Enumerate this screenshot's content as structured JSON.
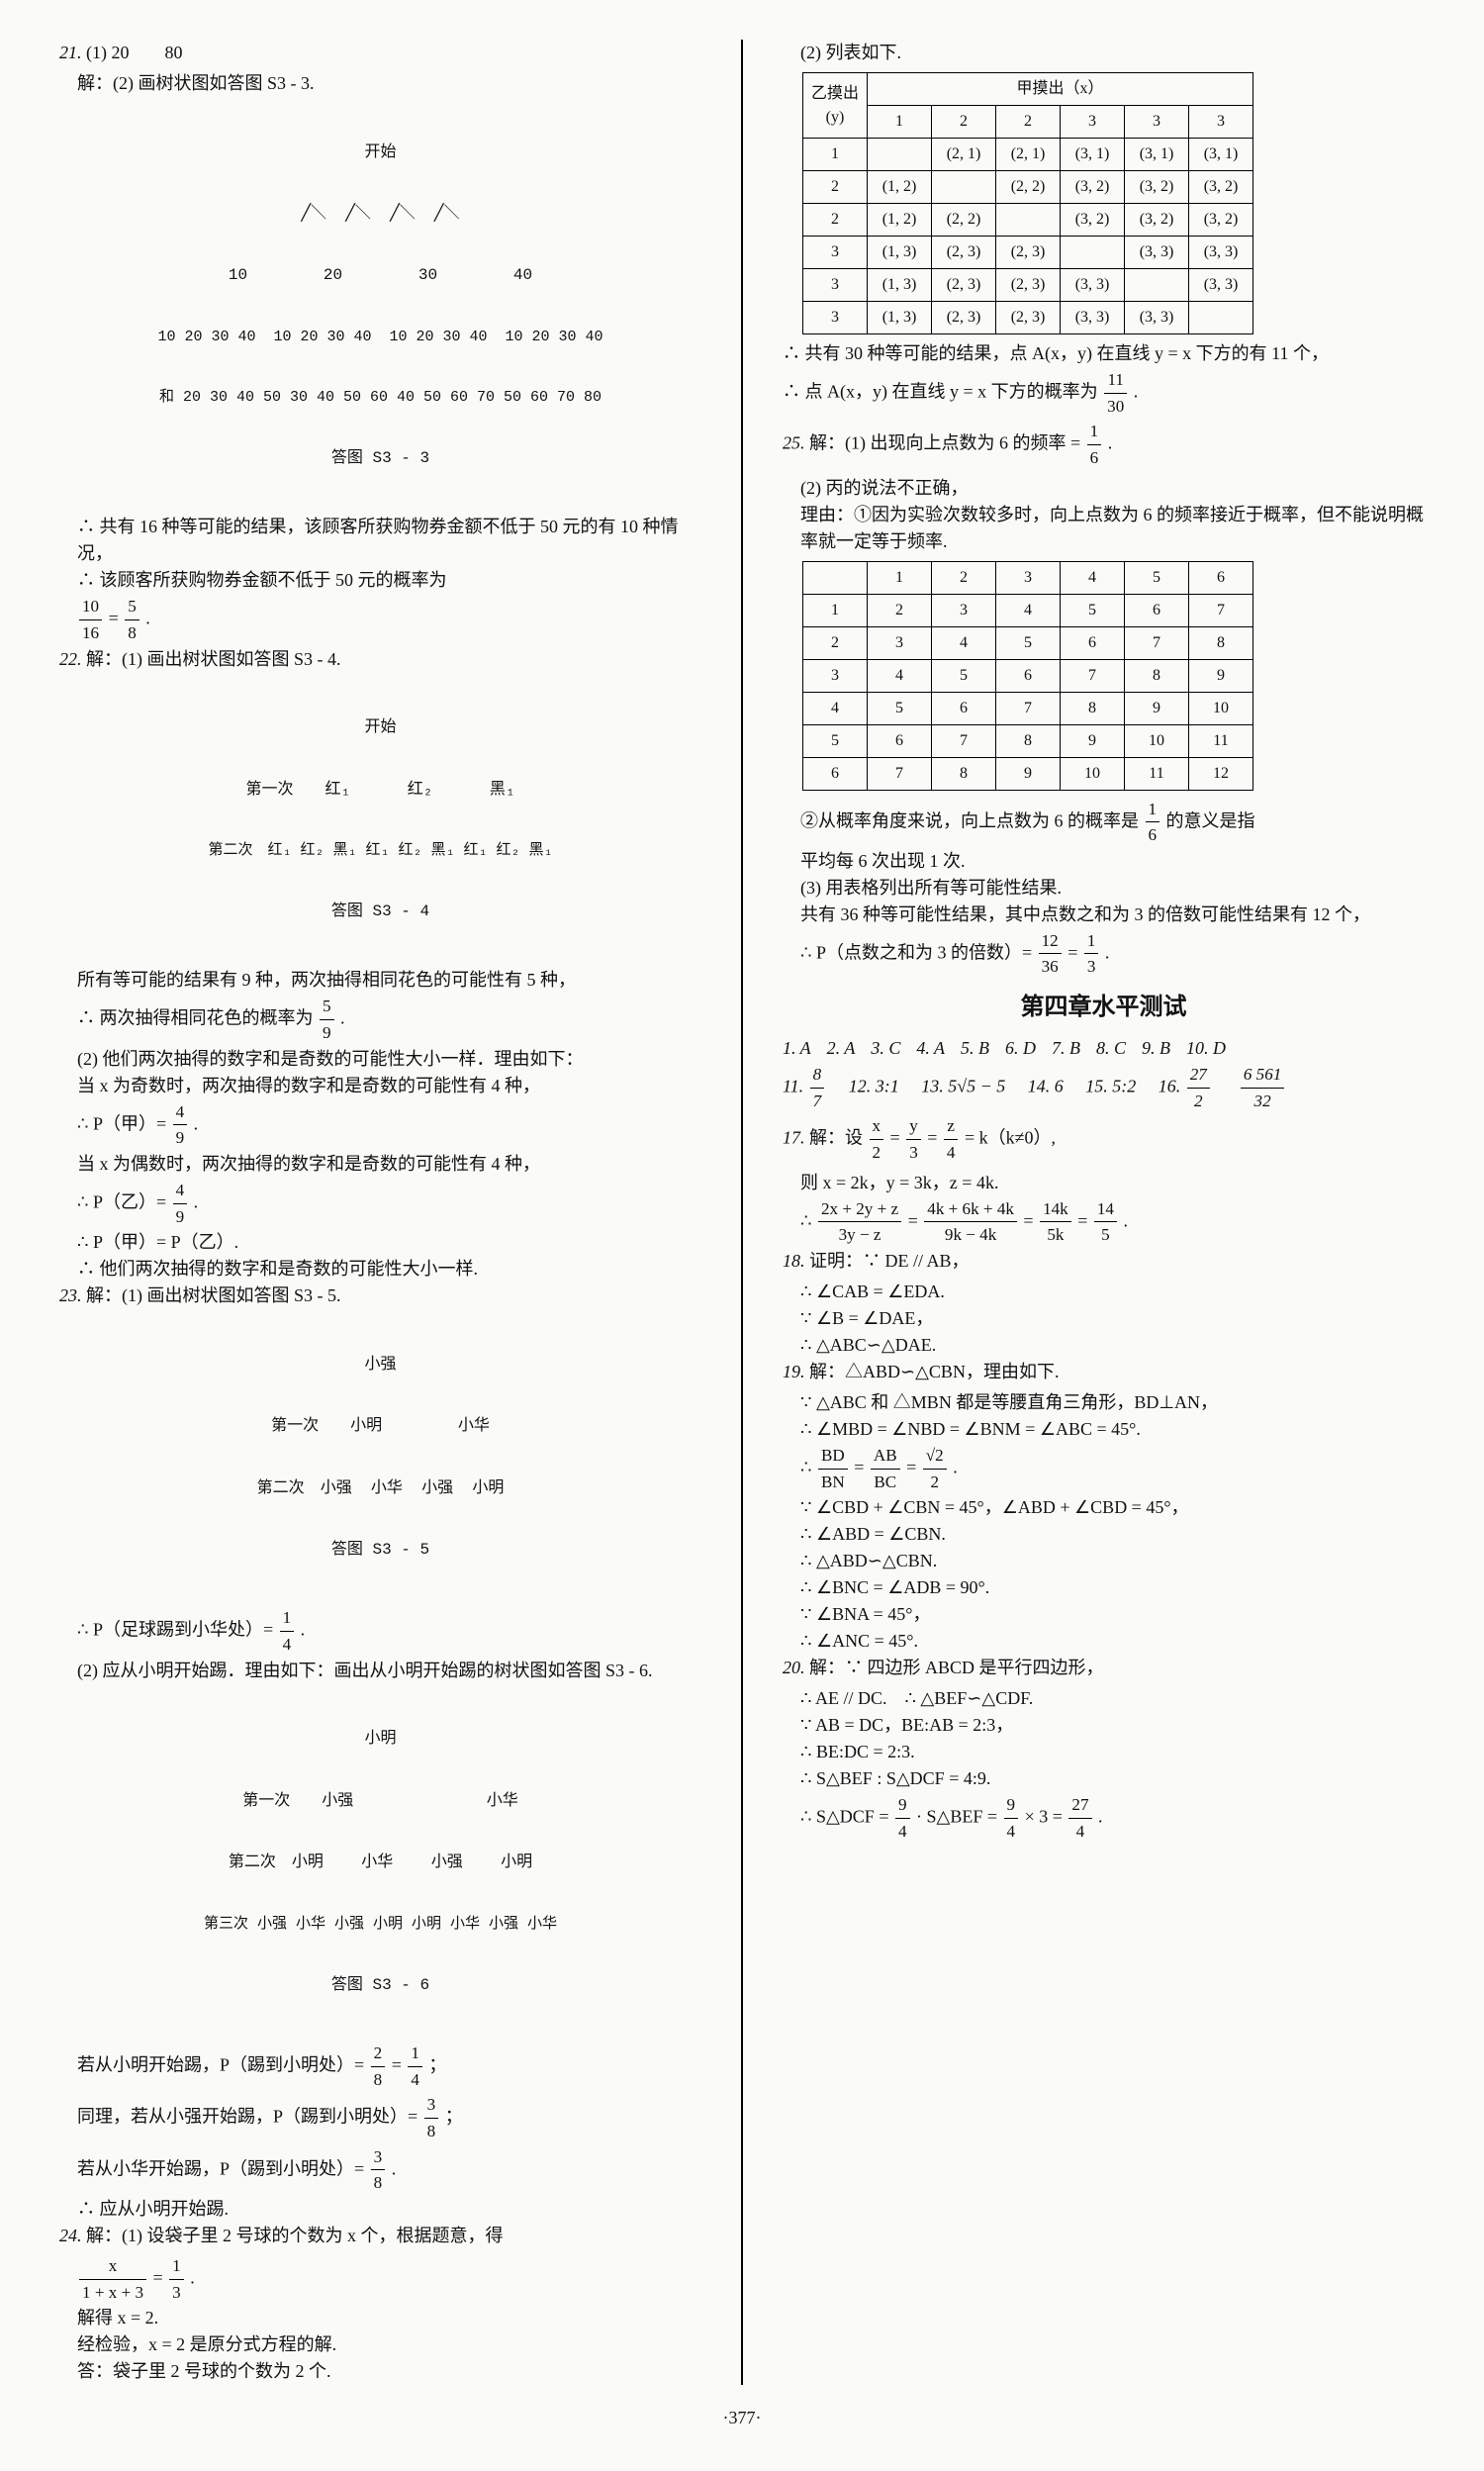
{
  "page_number": "·377·",
  "left": {
    "q21": {
      "num": "21.",
      "part1": "(1) 20　　80",
      "part2_label": "解：(2) 画树状图如答图 S3 - 3.",
      "tree_top": "开始",
      "tree_l1": "10        20        30        40",
      "tree_l2": "10 20 30 40  10 20 30 40  10 20 30 40  10 20 30 40",
      "tree_sum": "和 20 30 40 50 30 40 50 60 40 50 60 70 50 60 70 80",
      "tree_caption": "答图 S3 - 3",
      "concl1": "∴ 共有 16 种等可能的结果，该顾客所获购物券金额不低于 50 元的有 10 种情况，",
      "concl2_a": "∴ 该顾客所获购物券金额不低于 50 元的概率为",
      "frac1_n": "10",
      "frac1_d": "16",
      "eq": " = ",
      "frac2_n": "5",
      "frac2_d": "8",
      "period": "."
    },
    "q22": {
      "num": "22.",
      "label": "解：(1) 画出树状图如答图 S3 - 4.",
      "tree_top": "开始",
      "row1_label": "第一次",
      "row1": "红₁      红₂      黑₁",
      "row2_label": "第二次",
      "row2": "红₁ 红₂ 黑₁ 红₁ 红₂ 黑₁ 红₁ 红₂ 黑₁",
      "caption": "答图 S3 - 4",
      "s1": "所有等可能的结果有 9 种，两次抽得相同花色的可能性有 5 种，",
      "s2a": "∴ 两次抽得相同花色的概率为",
      "f1n": "5",
      "f1d": "9",
      "dot": ".",
      "s3": "(2) 他们两次抽得的数字和是奇数的可能性大小一样．理由如下：",
      "s4": "当 x 为奇数时，两次抽得的数字和是奇数的可能性有 4 种，",
      "s5a": "∴ P（甲）= ",
      "f2n": "4",
      "f2d": "9",
      "dot2": ".",
      "s6": "当 x 为偶数时，两次抽得的数字和是奇数的可能性有 4 种，",
      "s7a": "∴ P（乙）= ",
      "f3n": "4",
      "f3d": "9",
      "dot3": ".",
      "s8": "∴ P（甲）= P（乙）.",
      "s9": "∴ 他们两次抽得的数字和是奇数的可能性大小一样."
    },
    "q23": {
      "num": "23.",
      "label": "解：(1) 画出树状图如答图 S3 - 5.",
      "top": "小强",
      "r1l": "第一次",
      "r1": "小明        小华",
      "r2l": "第二次",
      "r2": "小强  小华  小强  小明",
      "cap": "答图 S3 - 5",
      "s1a": "∴ P（足球踢到小华处）= ",
      "f1n": "1",
      "f1d": "4",
      "dot": ".",
      "s2": "(2) 应从小明开始踢．理由如下：画出从小明开始踢的树状图如答图 S3 - 6.",
      "top2": "小明",
      "b1l": "第一次",
      "b1": "小强              小华",
      "b2l": "第二次",
      "b2": "小明    小华    小强    小明",
      "b3l": "第三次",
      "b3": "小强 小华 小强 小明 小明 小华 小强 小华",
      "cap2": "答图 S3 - 6",
      "s3a": "若从小明开始踢，P（踢到小明处）= ",
      "f2n": "2",
      "f2d": "8",
      "eq": " = ",
      "f3n": "1",
      "f3d": "4",
      "semi": "；",
      "s4a": "同理，若从小强开始踢，P（踢到小明处）= ",
      "f4n": "3",
      "f4d": "8",
      "semi2": "；",
      "s5a": "若从小华开始踢，P（踢到小明处）= ",
      "f5n": "3",
      "f5d": "8",
      "dot2": ".",
      "s6": "∴ 应从小明开始踢."
    },
    "q24": {
      "num": "24.",
      "label": "解：(1) 设袋子里 2 号球的个数为 x 个，根据题意，得",
      "eq_l": "x",
      "eq_ld": "1 + x + 3",
      "eq_mid": " = ",
      "eq_rn": "1",
      "eq_rd": "3",
      "dot": ".",
      "s2": "解得 x = 2.",
      "s3": "经检验，x = 2 是原分式方程的解.",
      "s4": "答：袋子里 2 号球的个数为 2 个."
    }
  },
  "right": {
    "q24b": {
      "label": "(2) 列表如下.",
      "hcorner_a": "乙摸出",
      "hcorner_b": "(y)",
      "hhead": "甲摸出（x）",
      "cols": [
        "1",
        "2",
        "2",
        "3",
        "3",
        "3"
      ],
      "rows": [
        {
          "h": "1",
          "c": [
            "",
            "(2, 1)",
            "(2, 1)",
            "(3, 1)",
            "(3, 1)",
            "(3, 1)"
          ]
        },
        {
          "h": "2",
          "c": [
            "(1, 2)",
            "",
            "(2, 2)",
            "(3, 2)",
            "(3, 2)",
            "(3, 2)"
          ]
        },
        {
          "h": "2",
          "c": [
            "(1, 2)",
            "(2, 2)",
            "",
            "(3, 2)",
            "(3, 2)",
            "(3, 2)"
          ]
        },
        {
          "h": "3",
          "c": [
            "(1, 3)",
            "(2, 3)",
            "(2, 3)",
            "",
            "(3, 3)",
            "(3, 3)"
          ]
        },
        {
          "h": "3",
          "c": [
            "(1, 3)",
            "(2, 3)",
            "(2, 3)",
            "(3, 3)",
            "",
            "(3, 3)"
          ]
        },
        {
          "h": "3",
          "c": [
            "(1, 3)",
            "(2, 3)",
            "(2, 3)",
            "(3, 3)",
            "(3, 3)",
            ""
          ]
        }
      ],
      "s1": "∴ 共有 30 种等可能的结果，点 A(x，y) 在直线 y = x 下方的有 11 个，",
      "s2a": "∴ 点 A(x，y) 在直线 y = x 下方的概率为",
      "fn": "11",
      "fd": "30",
      "dot": "."
    },
    "q25": {
      "num": "25.",
      "s1a": "解：(1) 出现向上点数为 6 的频率 = ",
      "fn": "1",
      "fd": "6",
      "dot": ".",
      "s2": "(2) 丙的说法不正确，",
      "s3": "理由：①因为实验次数较多时，向上点数为 6 的频率接近于概率，但不能说明概率就一定等于频率.",
      "thead": [
        "",
        "1",
        "2",
        "3",
        "4",
        "5",
        "6"
      ],
      "trows": [
        [
          "1",
          "2",
          "3",
          "4",
          "5",
          "6",
          "7"
        ],
        [
          "2",
          "3",
          "4",
          "5",
          "6",
          "7",
          "8"
        ],
        [
          "3",
          "4",
          "5",
          "6",
          "7",
          "8",
          "9"
        ],
        [
          "4",
          "5",
          "6",
          "7",
          "8",
          "9",
          "10"
        ],
        [
          "5",
          "6",
          "7",
          "8",
          "9",
          "10",
          "11"
        ],
        [
          "6",
          "7",
          "8",
          "9",
          "10",
          "11",
          "12"
        ]
      ],
      "s4a": "②从概率角度来说，向上点数为 6 的概率是",
      "f2n": "1",
      "f2d": "6",
      "s4b": "的意义是指",
      "s5": "平均每 6 次出现 1 次.",
      "s6": "(3) 用表格列出所有等可能性结果.",
      "s7": "共有 36 种等可能性结果，其中点数之和为 3 的倍数可能性结果有 12 个，",
      "s8a": "∴ P（点数之和为 3 的倍数）= ",
      "f3n": "12",
      "f3d": "36",
      "eq": " = ",
      "f4n": "1",
      "f4d": "3",
      "dot2": "."
    },
    "ch4": {
      "title": "第四章水平测试",
      "mc": [
        "1. A",
        "2. A",
        "3. C",
        "4. A",
        "5. B",
        "6. D",
        "7. B",
        "8. C",
        "9. B",
        "10. D"
      ],
      "fill_11a": "11. ",
      "f11n": "8",
      "f11d": "7",
      "fill_12": "12. 3:1",
      "fill_13": "13. 5√5 − 5",
      "fill_14": "14. 6",
      "fill_15": "15. 5:2",
      "fill_16a": "16. ",
      "f16an": "27",
      "f16ad": "2",
      "sep": "　",
      "f16bn": "6 561",
      "f16bd": "32",
      "q17": {
        "num": "17.",
        "label": "解：设",
        "eq1n": "x",
        "eq1d": "2",
        "m1": " = ",
        "eq2n": "y",
        "eq2d": "3",
        "m2": " = ",
        "eq3n": "z",
        "eq3d": "4",
        "tail": " = k（k≠0）,",
        "s2": "则 x = 2k，y = 3k，z = 4k.",
        "s3a": "∴ ",
        "fn1": "2x + 2y + z",
        "fd1": "3y − z",
        "m3": " = ",
        "fn2": "4k + 6k + 4k",
        "fd2": "9k − 4k",
        "m4": " = ",
        "fn3": "14k",
        "fd3": "5k",
        "m5": " = ",
        "fn4": "14",
        "fd4": "5",
        "dot": "."
      },
      "q18": {
        "num": "18.",
        "label": "证明：∵ DE // AB，",
        "s2": "∴ ∠CAB = ∠EDA.",
        "s3": "∵ ∠B = ∠DAE，",
        "s4": "∴ △ABC∽△DAE."
      },
      "q19": {
        "num": "19.",
        "label": "解：△ABD∽△CBN，理由如下.",
        "s2": "∵ △ABC 和 △MBN 都是等腰直角三角形，BD⊥AN，",
        "s3": "∴ ∠MBD = ∠NBD = ∠BNM = ∠ABC = 45°.",
        "s4a": "∴ ",
        "fn1": "BD",
        "fd1": "BN",
        "m1": " = ",
        "fn2": "AB",
        "fd2": "BC",
        "m2": " = ",
        "fn3": "√2",
        "fd3": "2",
        "dot": ".",
        "s5": "∵ ∠CBD + ∠CBN = 45°，∠ABD + ∠CBD = 45°，",
        "s6": "∴ ∠ABD = ∠CBN.",
        "s7": "∴ △ABD∽△CBN.",
        "s8": "∴ ∠BNC = ∠ADB = 90°.",
        "s9": "∵ ∠BNA = 45°，",
        "s10": "∴ ∠ANC = 45°."
      },
      "q20": {
        "num": "20.",
        "label": "解：∵ 四边形 ABCD 是平行四边形，",
        "s2": "∴ AE // DC.　∴ △BEF∽△CDF.",
        "s3": "∵ AB = DC，BE:AB = 2:3，",
        "s4": "∴ BE:DC = 2:3.",
        "s5": "∴ S△BEF : S△DCF = 4:9.",
        "s6a": "∴ S△DCF = ",
        "fn1": "9",
        "fd1": "4",
        "mid": " · S△BEF = ",
        "fn2": "9",
        "fd2": "4",
        "mid2": " × 3 = ",
        "fn3": "27",
        "fd3": "4",
        "dot": "."
      }
    }
  }
}
